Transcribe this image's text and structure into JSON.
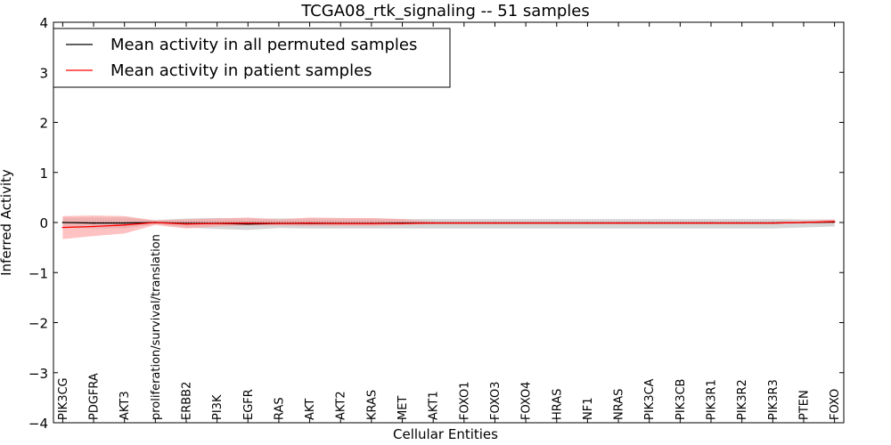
{
  "chart_data": {
    "type": "line",
    "title": "TCGA08_rtk_signaling -- 51 samples",
    "xlabel": "Cellular Entities",
    "ylabel": "Inferred Activity",
    "ylim": [
      -4,
      4
    ],
    "yticks": [
      -4,
      -3,
      -2,
      -1,
      0,
      1,
      2,
      3,
      4
    ],
    "xlim": [
      -0.3,
      25.3
    ],
    "grid": false,
    "legend_position": "top-left",
    "categories": [
      "PIK3CG",
      "PDGFRA",
      "AKT3",
      "proliferation/survival/translation",
      "ERBB2",
      "PI3K",
      "EGFR",
      "RAS",
      "AKT",
      "AKT2",
      "KRAS",
      "MET",
      "AKT1",
      "FOXO1",
      "FOXO3",
      "FOXO4",
      "HRAS",
      "NF1",
      "NRAS",
      "PIK3CA",
      "PIK3CB",
      "PIK3R1",
      "PIK3R2",
      "PIK3R3",
      "PTEN",
      "FOXO"
    ],
    "series": [
      {
        "name": "Mean activity in all permuted samples",
        "color": "#000000",
        "values": [
          0.0,
          -0.01,
          -0.01,
          0.0,
          -0.02,
          -0.02,
          -0.03,
          -0.02,
          -0.02,
          -0.02,
          -0.02,
          -0.01,
          -0.01,
          -0.01,
          -0.01,
          -0.01,
          -0.01,
          -0.01,
          -0.01,
          -0.01,
          -0.01,
          -0.01,
          -0.01,
          -0.01,
          0.0,
          0.01
        ],
        "band_lower": [
          -0.1,
          -0.12,
          -0.12,
          -0.03,
          -0.1,
          -0.13,
          -0.15,
          -0.11,
          -0.12,
          -0.12,
          -0.12,
          -0.12,
          -0.12,
          -0.12,
          -0.12,
          -0.12,
          -0.12,
          -0.12,
          -0.12,
          -0.12,
          -0.12,
          -0.12,
          -0.12,
          -0.12,
          -0.1,
          -0.08
        ],
        "band_upper": [
          0.1,
          0.1,
          0.1,
          0.05,
          0.08,
          0.09,
          0.08,
          0.08,
          0.08,
          0.08,
          0.08,
          0.07,
          0.07,
          0.07,
          0.07,
          0.07,
          0.07,
          0.07,
          0.07,
          0.07,
          0.07,
          0.07,
          0.07,
          0.07,
          0.06,
          0.06
        ],
        "band_color": "#bbbbbb"
      },
      {
        "name": "Mean activity in patient samples",
        "color": "#ff0000",
        "values": [
          -0.1,
          -0.08,
          -0.05,
          0.0,
          -0.03,
          -0.02,
          -0.01,
          -0.02,
          -0.01,
          -0.02,
          -0.02,
          -0.02,
          -0.01,
          -0.01,
          -0.01,
          -0.01,
          -0.01,
          -0.01,
          -0.01,
          -0.01,
          -0.01,
          -0.01,
          -0.01,
          -0.01,
          0.0,
          0.02
        ],
        "band_lower": [
          -0.33,
          -0.27,
          -0.22,
          -0.05,
          -0.12,
          -0.08,
          -0.06,
          -0.06,
          -0.07,
          -0.07,
          -0.07,
          -0.05,
          -0.03,
          -0.03,
          -0.03,
          -0.03,
          -0.03,
          -0.03,
          -0.03,
          -0.03,
          -0.03,
          -0.03,
          -0.03,
          -0.03,
          -0.02,
          -0.02
        ],
        "band_upper": [
          0.13,
          0.14,
          0.13,
          0.04,
          0.06,
          0.08,
          0.1,
          0.06,
          0.1,
          0.09,
          0.09,
          0.07,
          0.02,
          0.02,
          0.02,
          0.02,
          0.02,
          0.02,
          0.02,
          0.02,
          0.02,
          0.02,
          0.02,
          0.02,
          0.03,
          0.06
        ],
        "band_color": "#ff9a9a"
      }
    ],
    "reference_line": {
      "y": 0,
      "style": "dotted"
    }
  }
}
